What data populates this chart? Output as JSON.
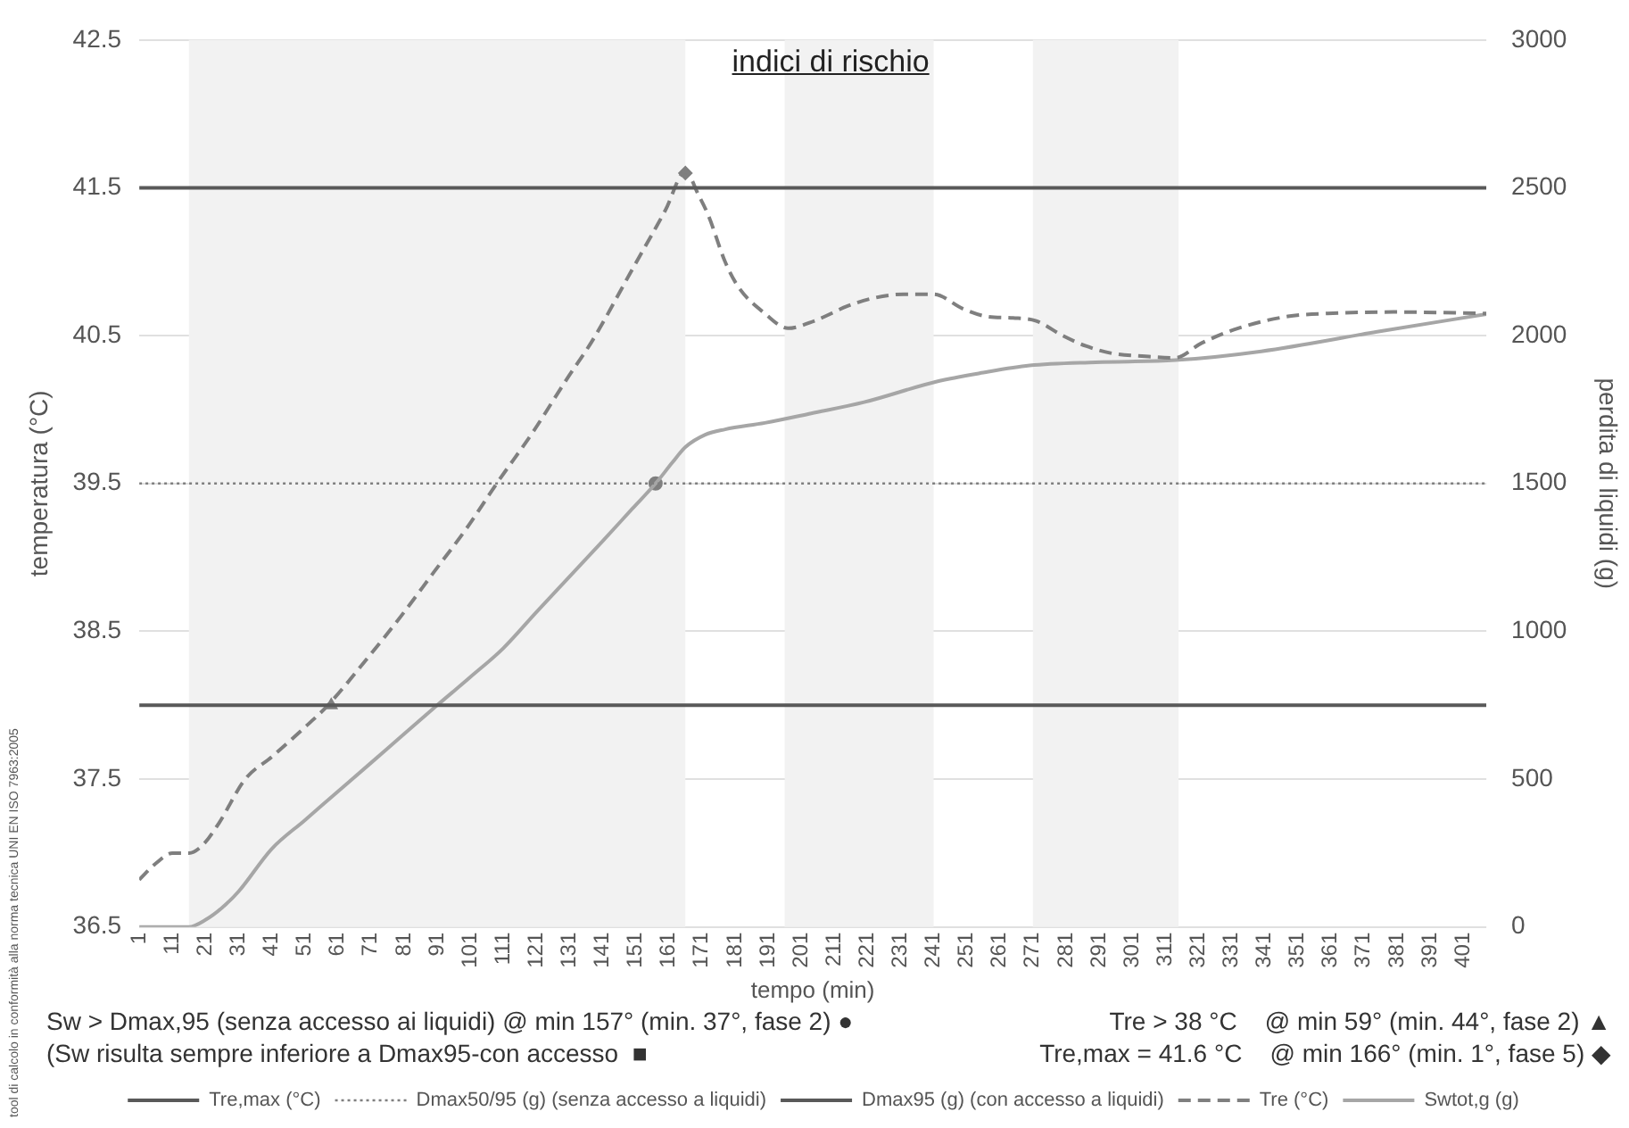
{
  "chart_data": {
    "type": "line",
    "title": "indici di rischio",
    "xlabel": "tempo (min)",
    "ylabel": "temperatura (°C)",
    "y2label": "perdita di liquidi (g)",
    "xlim": [
      1,
      408
    ],
    "xticks": [
      1,
      11,
      21,
      31,
      41,
      51,
      61,
      71,
      81,
      91,
      101,
      111,
      121,
      131,
      141,
      151,
      161,
      171,
      181,
      191,
      201,
      211,
      221,
      231,
      241,
      251,
      261,
      271,
      281,
      291,
      301,
      311,
      321,
      331,
      341,
      351,
      361,
      371,
      381,
      391,
      401
    ],
    "ylim": [
      36.5,
      42.5
    ],
    "yticks": [
      36.5,
      37.5,
      38.5,
      39.5,
      40.5,
      41.5,
      42.5
    ],
    "y2lim": [
      0,
      3000
    ],
    "y2ticks": [
      0,
      500,
      1000,
      1500,
      2000,
      2500,
      3000
    ],
    "grid": "y",
    "legend": "bottom",
    "bands": [
      {
        "axis": "x",
        "from": 16,
        "to": 166,
        "color": "#f2f2f2"
      },
      {
        "axis": "x",
        "from": 196,
        "to": 241,
        "color": "#f2f2f2"
      },
      {
        "axis": "x",
        "from": 271,
        "to": 315,
        "color": "#f2f2f2"
      }
    ],
    "annotations": [
      "Sw > Dmax,95 (senza accesso ai liquidi) @ min 157° (min. 37°, fase 2) ●",
      "Tre > 38 °C    @ min 59° (min. 44°, fase 2) ▲",
      "(Sw risulta sempre inferiore a Dmax95-con accesso  ■",
      "Tre,max = 41.6 °C    @ min 166° (min. 1°, fase 5) ◆",
      "tool di calcolo in conformità alla norma tecnica UNI EN ISO 7963:2005"
    ],
    "series": [
      {
        "name": "Tre,max (°C)",
        "color": "#595959",
        "x": [
          1,
          408
        ],
        "values": [
          41.5,
          41.5
        ]
      },
      {
        "name": "Dmax50/95 (g) (senza accesso a liquidi)",
        "color": "#7f7f7f",
        "line_style": "dotted",
        "axis": "y2",
        "x": [
          1,
          408
        ],
        "values": [
          1500,
          1500
        ]
      },
      {
        "name": "Dmax95 (g) (con accesso a liquidi)",
        "color": "#595959",
        "axis": "y2",
        "x": [
          1,
          408
        ],
        "values": [
          750,
          750
        ]
      },
      {
        "name": "Tre (°C)",
        "color": "#7f7f7f",
        "line_style": "dashed",
        "x": [
          1,
          6,
          11,
          16,
          20,
          25,
          33,
          41,
          50,
          58,
          70,
          80,
          90,
          100,
          109,
          120,
          130,
          138,
          150,
          160,
          166,
          170,
          173,
          178,
          182,
          190,
          197,
          205,
          215,
          222,
          232,
          241,
          250,
          257,
          265,
          272,
          280,
          287,
          295,
          305,
          314,
          322,
          333,
          348,
          360,
          380,
          408
        ],
        "values": [
          36.82,
          36.93,
          37.0,
          37.0,
          37.05,
          37.2,
          37.5,
          37.65,
          37.83,
          38.0,
          38.32,
          38.6,
          38.9,
          39.2,
          39.5,
          39.85,
          40.2,
          40.47,
          40.95,
          41.35,
          41.61,
          41.45,
          41.31,
          41.0,
          40.83,
          40.65,
          40.55,
          40.6,
          40.7,
          40.75,
          40.78,
          40.78,
          40.68,
          40.63,
          40.62,
          40.6,
          40.5,
          40.43,
          40.38,
          40.36,
          40.35,
          40.45,
          40.55,
          40.63,
          40.65,
          40.66,
          40.65
        ]
      },
      {
        "name": "Swtot,g (g)",
        "color": "#a6a6a6",
        "axis": "y2",
        "x": [
          1,
          16,
          21,
          26,
          31,
          41,
          51,
          61,
          71,
          81,
          91,
          101,
          111,
          121,
          131,
          141,
          150,
          157,
          162,
          166,
          172,
          178,
          190,
          204,
          220,
          242,
          256,
          270,
          290,
          314,
          340,
          375,
          408
        ],
        "values": [
          0,
          0,
          24,
          65,
          120,
          264,
          361,
          458,
          555,
          653,
          750,
          845,
          943,
          1065,
          1185,
          1305,
          1415,
          1500,
          1570,
          1623,
          1665,
          1683,
          1705,
          1737,
          1775,
          1845,
          1875,
          1899,
          1910,
          1917,
          1947,
          2013,
          2073
        ]
      },
      {
        "type": "scatter",
        "color": "#7f7f7f",
        "marker": "circle",
        "axis": "y2",
        "x": [
          157
        ],
        "values": [
          1500
        ]
      },
      {
        "type": "scatter",
        "color": "#7f7f7f",
        "marker": "triangle",
        "x": [
          59
        ],
        "values": [
          38
        ]
      },
      {
        "type": "scatter",
        "color": "#7f7f7f",
        "marker": "diamond",
        "x": [
          166
        ],
        "values": [
          41.6
        ]
      }
    ]
  }
}
